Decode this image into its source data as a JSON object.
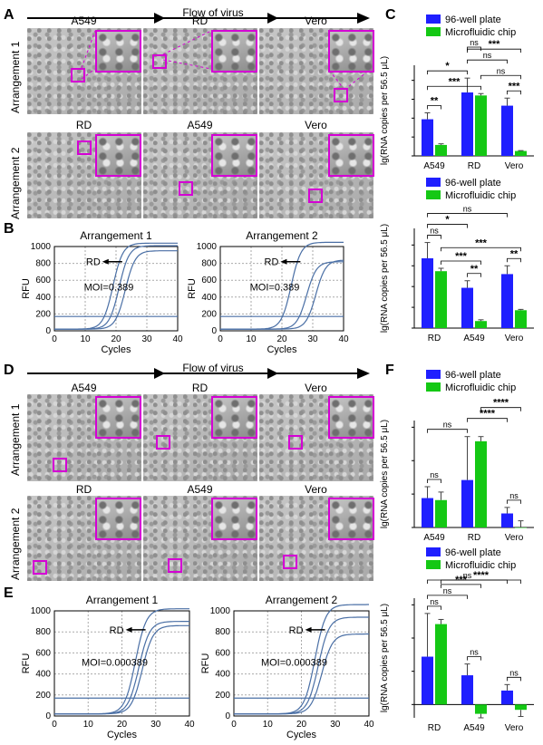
{
  "colors": {
    "blue": "#1f1fff",
    "green": "#14c814",
    "magenta": "#d400d4",
    "curve": "#4a6fa5"
  },
  "panel_labels": {
    "A": "A",
    "B": "B",
    "C": "C",
    "D": "D",
    "E": "E",
    "F": "F"
  },
  "flow_label": "Flow of virus",
  "row_labels": {
    "r1": "Arrangement 1",
    "r2": "Arrangement 2"
  },
  "panel_A": {
    "row1": [
      "A549",
      "RD",
      "Vero"
    ],
    "row2": [
      "RD",
      "A549",
      "Vero"
    ]
  },
  "panel_D": {
    "row1": [
      "A549",
      "RD",
      "Vero"
    ],
    "row2": [
      "RD",
      "A549",
      "Vero"
    ]
  },
  "legend": {
    "plate": "96-well plate",
    "chip": "Microfluidic chip"
  },
  "bar_ylabel": "lg(RNA copies per 56.5 μL)",
  "sig": {
    "ns": "ns",
    "s1": "*",
    "s2": "**",
    "s3": "***",
    "s4": "****"
  },
  "chart_data": [
    {
      "id": "C",
      "type": "bar",
      "categories": [
        "A549",
        "RD",
        "Vero"
      ],
      "ylim": [
        0,
        2.4
      ],
      "series": [
        {
          "name": "96-well plate",
          "values": [
            0.97,
            1.68,
            1.33
          ]
        },
        {
          "name": "Microfluidic chip",
          "values": [
            0.29,
            1.6,
            0.13
          ]
        }
      ],
      "errors": [
        [
          0.17,
          0.38,
          0.2
        ],
        [
          0.03,
          0.05,
          0.01
        ]
      ],
      "brackets": [
        [
          "plate",
          0,
          "chip",
          0,
          "**"
        ],
        [
          "plate",
          0,
          "plate",
          1,
          "*"
        ],
        [
          "plate",
          0,
          "chip",
          1,
          "***"
        ],
        [
          "plate",
          1,
          "plate",
          2,
          "ns"
        ],
        [
          "chip",
          1,
          "chip",
          2,
          "ns"
        ],
        [
          "plate",
          2,
          "chip",
          2,
          "***"
        ],
        [
          "plate",
          1,
          "chip",
          2,
          "***"
        ],
        [
          "plate",
          1,
          "chip",
          1,
          "ns"
        ]
      ]
    },
    {
      "id": "B2",
      "type": "bar",
      "categories": [
        "RD",
        "A549",
        "Vero"
      ],
      "ylim": [
        0,
        2.4
      ],
      "series": [
        {
          "name": "96-well plate",
          "values": [
            1.68,
            0.97,
            1.3
          ]
        },
        {
          "name": "Microfluidic chip",
          "values": [
            1.37,
            0.17,
            0.43
          ]
        }
      ],
      "errors": [
        [
          0.38,
          0.17,
          0.2
        ],
        [
          0.07,
          0.03,
          0.02
        ]
      ],
      "brackets": [
        [
          "plate",
          0,
          "chip",
          0,
          "ns"
        ],
        [
          "plate",
          1,
          "chip",
          1,
          "**"
        ],
        [
          "plate",
          2,
          "chip",
          2,
          "**"
        ],
        [
          "plate",
          0,
          "plate",
          1,
          "*"
        ],
        [
          "chip",
          0,
          "chip",
          1,
          "***"
        ],
        [
          "plate",
          0,
          "plate",
          2,
          "ns"
        ],
        [
          "chip",
          0,
          "chip",
          2,
          "***"
        ]
      ]
    },
    {
      "id": "F",
      "type": "bar",
      "categories": [
        "A549",
        "RD",
        "Vero"
      ],
      "ylim": [
        0,
        1.6
      ],
      "series": [
        {
          "name": "96-well plate",
          "values": [
            0.44,
            0.71,
            0.21
          ]
        },
        {
          "name": "Microfluidic chip",
          "values": [
            0.41,
            1.29,
            0.0
          ]
        }
      ],
      "errors": [
        [
          0.17,
          0.65,
          0.09
        ],
        [
          0.12,
          0.07,
          0.1
        ]
      ],
      "brackets": [
        [
          "plate",
          0,
          "chip",
          0,
          "ns"
        ],
        [
          "plate",
          2,
          "chip",
          2,
          "ns"
        ],
        [
          "plate",
          0,
          "plate",
          1,
          "ns"
        ],
        [
          "plate",
          1,
          "plate",
          2,
          "****"
        ],
        [
          "chip",
          1,
          "chip",
          2,
          "****"
        ]
      ]
    },
    {
      "id": "E2",
      "type": "bar",
      "categories": [
        "RD",
        "A549",
        "Vero"
      ],
      "ylim": [
        -0.2,
        1.6
      ],
      "series": [
        {
          "name": "96-well plate",
          "values": [
            0.72,
            0.44,
            0.21
          ]
        },
        {
          "name": "Microfluidic chip",
          "values": [
            1.21,
            -0.14,
            -0.08
          ]
        }
      ],
      "errors": [
        [
          0.65,
          0.17,
          0.09
        ],
        [
          0.07,
          0.06,
          0.1
        ]
      ],
      "brackets": [
        [
          "plate",
          0,
          "chip",
          0,
          "ns"
        ],
        [
          "plate",
          1,
          "chip",
          1,
          "ns"
        ],
        [
          "plate",
          2,
          "chip",
          2,
          "ns"
        ],
        [
          "plate",
          0,
          "plate",
          1,
          "ns"
        ],
        [
          "chip",
          0,
          "chip",
          1,
          "***"
        ],
        [
          "plate",
          0,
          "plate",
          2,
          "ns"
        ],
        [
          "chip",
          0,
          "chip",
          2,
          "****"
        ]
      ]
    },
    {
      "id": "B_a1",
      "type": "line",
      "title": "Arrangement 1",
      "xlabel": "Cycles",
      "ylabel": "RFU",
      "xlim": [
        0,
        40
      ],
      "ylim": [
        0,
        1000
      ],
      "annotation_rd": "RD",
      "annotation_moi": "MOI=0.389",
      "threshold": 170,
      "series": [
        {
          "mid": 19,
          "top": 1020
        },
        {
          "mid": 21,
          "top": 990
        },
        {
          "mid": 23,
          "top": 930
        }
      ]
    },
    {
      "id": "B_a2",
      "type": "line",
      "title": "Arrangement 2",
      "xlabel": "Cycles",
      "ylabel": "RFU",
      "xlim": [
        0,
        40
      ],
      "ylim": [
        0,
        1000
      ],
      "annotation_rd": "RD",
      "annotation_moi": "MOI=0.389",
      "threshold": 170,
      "series": [
        {
          "mid": 23,
          "top": 1030
        },
        {
          "mid": 28,
          "top": 800
        },
        {
          "mid": 31,
          "top": 820
        }
      ]
    },
    {
      "id": "E_a1",
      "type": "line",
      "title": "Arrangement 1",
      "xlabel": "Cycles",
      "ylabel": "RFU",
      "xlim": [
        0,
        40
      ],
      "ylim": [
        0,
        1000
      ],
      "annotation_rd": "RD",
      "annotation_moi": "MOI=0.000389",
      "threshold": 170,
      "series": [
        {
          "mid": 24,
          "top": 1000
        },
        {
          "mid": 25,
          "top": 880
        },
        {
          "mid": 26,
          "top": 840
        }
      ]
    },
    {
      "id": "E_a2",
      "type": "line",
      "title": "Arrangement 2",
      "xlabel": "Cycles",
      "ylabel": "RFU",
      "xlim": [
        0,
        40
      ],
      "ylim": [
        0,
        1000
      ],
      "annotation_rd": "RD",
      "annotation_moi": "MOI=0.000389",
      "threshold": 170,
      "series": [
        {
          "mid": 24,
          "top": 1040
        },
        {
          "mid": 25,
          "top": 920
        },
        {
          "mid": 26,
          "top": 760
        }
      ]
    }
  ]
}
